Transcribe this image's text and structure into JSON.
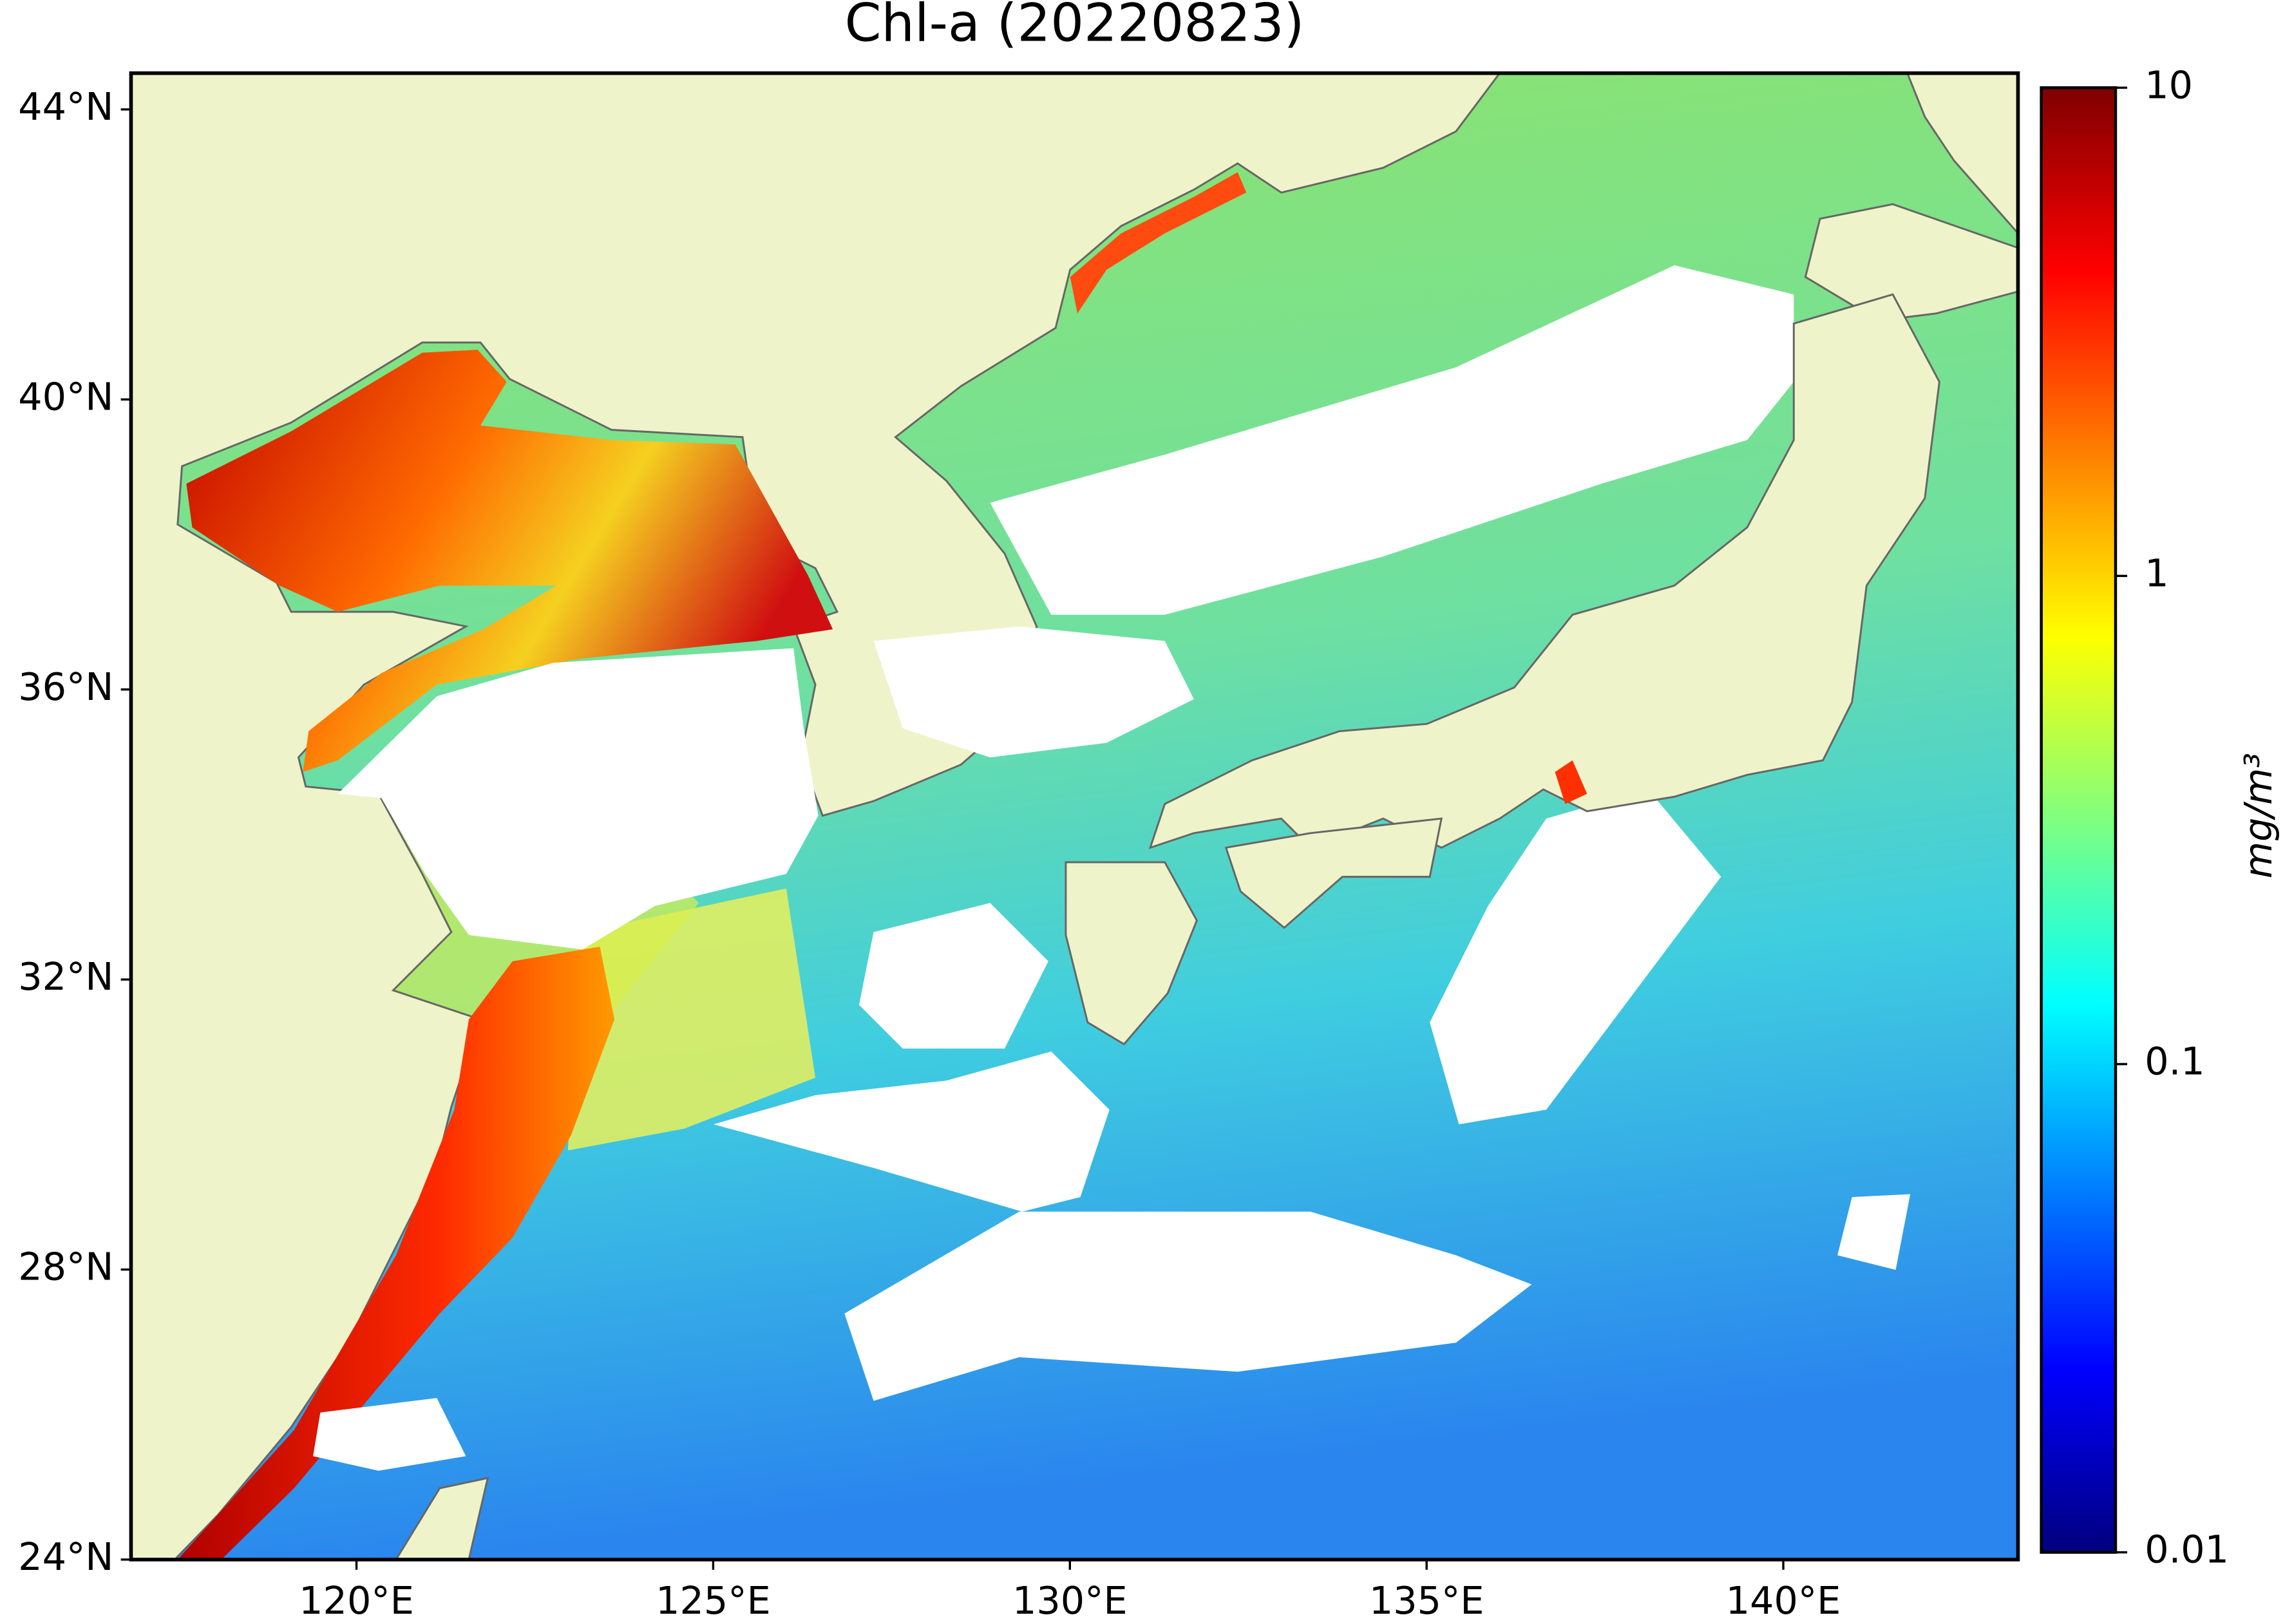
{
  "chart_data": {
    "type": "map",
    "title": "Chl-a (20220823)",
    "xlim": [
      116.84,
      143.29
    ],
    "ylim": [
      24,
      44.5
    ],
    "xticks": [
      {
        "value": 120,
        "label": "120°E"
      },
      {
        "value": 125,
        "label": "125°E"
      },
      {
        "value": 130,
        "label": "130°E"
      },
      {
        "value": 135,
        "label": "135°E"
      },
      {
        "value": 140,
        "label": "140°E"
      }
    ],
    "yticks": [
      {
        "value": 24,
        "label": "24°N"
      },
      {
        "value": 28,
        "label": "28°N"
      },
      {
        "value": 32,
        "label": "32°N"
      },
      {
        "value": 36,
        "label": "36°N"
      },
      {
        "value": 40,
        "label": "40°N"
      },
      {
        "value": 44,
        "label": "44°N"
      }
    ],
    "colorbar": {
      "label": "mg/m³",
      "scale": "log",
      "lim": [
        0.01,
        10
      ],
      "ticks": [
        0.01,
        0.1,
        1,
        10
      ],
      "colormap": "jet"
    }
  }
}
